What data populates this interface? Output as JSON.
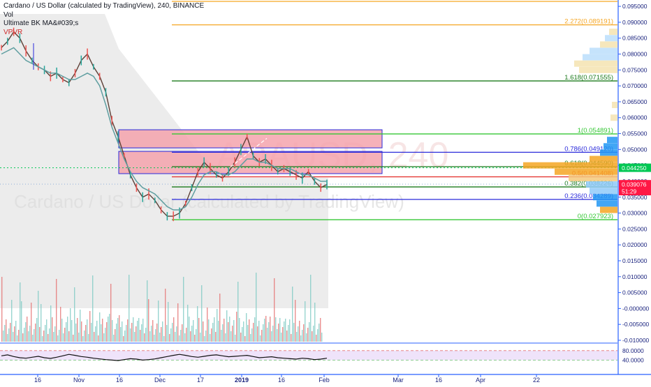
{
  "header": {
    "title": "Cardano / US Dollar (calculated by TradingView), 240, BINANCE",
    "indicators": [
      "Vol",
      "Ultimate BK MA&#039;s",
      "VPVR"
    ]
  },
  "watermark": {
    "symbol": "ADAUSD, 240",
    "description": "Cardano / US Dollar (calculated by TradingView)"
  },
  "colors": {
    "axis": "#2962ff",
    "fib_green": "#4caf50",
    "fib_orange": "#f5a623",
    "fib_blue": "#2a2adb",
    "fib_red": "#e53935",
    "zone_fill": "#f4a3ad",
    "price_badge": "#00c853",
    "last_badge": "#ff1744",
    "rsi_band": "#efe3fa"
  },
  "chart_data": {
    "type": "line",
    "title": "Cardano / US Dollar (calculated by TradingView), 240, BINANCE",
    "y_axis": {
      "ticks": [
        "0.095000",
        "0.090000",
        "0.085000",
        "0.080000",
        "0.075000",
        "0.070000",
        "0.065000",
        "0.060000",
        "0.055000",
        "0.050000",
        "0.045000",
        "0.040000",
        "0.035000",
        "0.030000",
        "0.025000",
        "0.020000",
        "0.015000",
        "0.010000",
        "0.005000",
        "-0.000000",
        "-0.005000",
        "-0.010000"
      ],
      "range": [
        -0.01,
        0.097
      ]
    },
    "x_axis": {
      "ticks": [
        "16",
        "Nov",
        "16",
        "Dec",
        "17",
        "2019",
        "16",
        "Feb",
        "Mar",
        "16",
        "Apr",
        "22"
      ]
    },
    "fib_levels": [
      {
        "label": "2.272(0.089191)",
        "value": 0.089191,
        "color": "#f5a623"
      },
      {
        "label": "1.618(0.071555)",
        "value": 0.071555,
        "color": "#1b7a1b"
      },
      {
        "label": "1(0.054891)",
        "value": 0.054891,
        "color": "#35c735"
      },
      {
        "label": "0.786(0.049120)",
        "value": 0.04912,
        "color": "#2a2adb"
      },
      {
        "label": "0.618(0.044590)",
        "value": 0.04459,
        "color": "#1b7a1b"
      },
      {
        "label": "0.5(0.041408)",
        "value": 0.041408,
        "color": "#e53935"
      },
      {
        "label": "0.382(0.038226)",
        "value": 0.038226,
        "color": "#1b7a1b"
      },
      {
        "label": "0.236(0.034289)",
        "value": 0.034289,
        "color": "#2a2adb"
      },
      {
        "label": "0(0.027923)",
        "value": 0.027923,
        "color": "#35c735"
      }
    ],
    "zones": [
      {
        "from": 0.0505,
        "to": 0.0562
      },
      {
        "from": 0.0424,
        "to": 0.0494
      }
    ],
    "price_labels": [
      {
        "label": "0.044250",
        "value": 0.04425,
        "color": "#00c853"
      },
      {
        "label": "0.039076",
        "value": 0.039076,
        "color": "#ff1744"
      },
      {
        "label": "51:29",
        "value": 0.0369,
        "color": "#ff1744"
      }
    ],
    "price": [
      0.082,
      0.084,
      0.087,
      0.085,
      0.081,
      0.078,
      0.076,
      0.075,
      0.073,
      0.074,
      0.072,
      0.071,
      0.074,
      0.078,
      0.08,
      0.076,
      0.073,
      0.068,
      0.059,
      0.054,
      0.048,
      0.042,
      0.038,
      0.035,
      0.036,
      0.034,
      0.031,
      0.029,
      0.029,
      0.03,
      0.033,
      0.038,
      0.043,
      0.046,
      0.044,
      0.042,
      0.041,
      0.043,
      0.046,
      0.05,
      0.054,
      0.048,
      0.046,
      0.047,
      0.045,
      0.043,
      0.044,
      0.043,
      0.042,
      0.041,
      0.043,
      0.04,
      0.038,
      0.039
    ],
    "ma": [
      0.08,
      0.081,
      0.082,
      0.08,
      0.078,
      0.077,
      0.076,
      0.075,
      0.074,
      0.074,
      0.073,
      0.072,
      0.072,
      0.073,
      0.074,
      0.073,
      0.07,
      0.064,
      0.057,
      0.052,
      0.047,
      0.043,
      0.04,
      0.038,
      0.037,
      0.036,
      0.034,
      0.032,
      0.031,
      0.031,
      0.032,
      0.035,
      0.039,
      0.042,
      0.043,
      0.043,
      0.042,
      0.042,
      0.043,
      0.045,
      0.047,
      0.047,
      0.046,
      0.046,
      0.045,
      0.044,
      0.044,
      0.044,
      0.043,
      0.042,
      0.042,
      0.041,
      0.04,
      0.04
    ],
    "rsi": {
      "levels": [
        "80.0000",
        "40.0000"
      ],
      "values": [
        58,
        62,
        55,
        50,
        48,
        52,
        56,
        50,
        47,
        52,
        58,
        64,
        60,
        55,
        52,
        48,
        45,
        42,
        40,
        38,
        42,
        46,
        44,
        40,
        42,
        45,
        50,
        55,
        60,
        64,
        60,
        55,
        52,
        56,
        60,
        62,
        58,
        54,
        56,
        58,
        60,
        55,
        50,
        52,
        54,
        50,
        48,
        46,
        44,
        48,
        46,
        42,
        44,
        48
      ]
    }
  }
}
